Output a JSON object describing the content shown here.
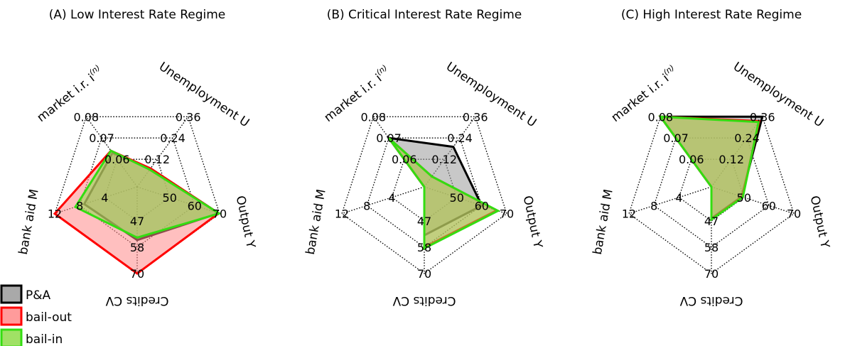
{
  "chart_data": [
    {
      "type": "radar",
      "title": "(A) Low Interest Rate Regime",
      "axes": [
        {
          "label": "market i.r. i",
          "label_sup": "(n)",
          "ticks": [
            "0.06",
            "0.07",
            "0.08"
          ],
          "ticks_rotated": false
        },
        {
          "label": "Unemployment U",
          "ticks": [
            "0.12",
            "0.24",
            "0.36"
          ],
          "ticks_rotated": false
        },
        {
          "label": "Output Y",
          "ticks": [
            "50",
            "60",
            "70"
          ],
          "ticks_rotated": false
        },
        {
          "label": "Credits CV",
          "ticks": [
            "47",
            "58",
            "70"
          ],
          "ticks_rotated": false
        },
        {
          "label": "bank aid M",
          "ticks": [
            "4",
            "8",
            "12"
          ],
          "ticks_rotated": false
        }
      ],
      "series": [
        {
          "name": "P&A",
          "color": "#000000",
          "fill": "#9a9a9a",
          "values": [
            0.063,
            0.08,
            69.6,
            55,
            7.7
          ]
        },
        {
          "name": "bail-out",
          "color": "#ff0000",
          "fill": "#ff8a8a",
          "values": [
            0.064,
            0.08,
            69.6,
            70,
            12.0
          ]
        },
        {
          "name": "bail-in",
          "color": "#33dd11",
          "fill": "#8fdc4a",
          "values": [
            0.064,
            0.075,
            69.8,
            54,
            9.0
          ]
        }
      ]
    },
    {
      "type": "radar",
      "title": "(B) Critical Interest Rate Regime",
      "axes": [
        {
          "label": "market i.r. i",
          "label_sup": "(n)",
          "ticks": [
            "0.06",
            "0.07",
            "0.08"
          ],
          "ticks_rotated": false
        },
        {
          "label": "Unemployment U",
          "ticks": [
            "0.12",
            "0.24",
            "0.36"
          ],
          "ticks_rotated": false
        },
        {
          "label": "Output Y",
          "ticks": [
            "50",
            "60",
            "70"
          ],
          "ticks_rotated": false
        },
        {
          "label": "Credits CV",
          "ticks": [
            "47",
            "58",
            "70"
          ],
          "ticks_rotated": false
        },
        {
          "label": "bank aid M",
          "ticks": [
            "4",
            "8",
            "12"
          ],
          "ticks_rotated": false
        }
      ],
      "series": [
        {
          "name": "P&A",
          "color": "#000000",
          "fill": "#9a9a9a",
          "values": [
            0.07,
            0.19,
            60,
            53,
            0
          ]
        },
        {
          "name": "bail-out",
          "color": "#ff0000",
          "fill": "#ff8a8a",
          "values": [
            0.07,
            0.045,
            66,
            58,
            0
          ]
        },
        {
          "name": "bail-in",
          "color": "#33dd11",
          "fill": "#8fdc4a",
          "values": [
            0.07,
            0.045,
            66.5,
            58.5,
            0
          ]
        }
      ]
    },
    {
      "type": "radar",
      "title": "(C) High Interest Rate Regime",
      "axes": [
        {
          "label": "market i.r. i",
          "label_sup": "(n)",
          "ticks": [
            "0.06",
            "0.07",
            "0.08"
          ],
          "ticks_rotated": false
        },
        {
          "label": "Unemployment U",
          "ticks": [
            "0.12",
            "0.24",
            "0.36"
          ],
          "ticks_rotated": false
        },
        {
          "label": "Output Y",
          "ticks": [
            "50",
            "60",
            "70"
          ],
          "ticks_rotated": false
        },
        {
          "label": "Credits CV",
          "ticks": [
            "47",
            "58",
            "70"
          ],
          "ticks_rotated": false
        },
        {
          "label": "bank aid M",
          "ticks": [
            "4",
            "8",
            "12"
          ],
          "ticks_rotated": false
        }
      ],
      "series": [
        {
          "name": "P&A",
          "color": "#000000",
          "fill": "#9a9a9a",
          "values": [
            0.08,
            0.36,
            46.5,
            43.5,
            0
          ]
        },
        {
          "name": "bail-out",
          "color": "#ff0000",
          "fill": "#ff8a8a",
          "values": [
            0.08,
            0.335,
            47.5,
            44.5,
            0
          ]
        },
        {
          "name": "bail-in",
          "color": "#33dd11",
          "fill": "#8fdc4a",
          "values": [
            0.08,
            0.33,
            48.5,
            45,
            0
          ]
        }
      ]
    }
  ],
  "legend": {
    "position": "bottom-left",
    "items": [
      {
        "label": "P&A",
        "color": "#000000",
        "fill": "#9a9a9a"
      },
      {
        "label": "bail-out",
        "color": "#ff0000",
        "fill": "#ff8a8a"
      },
      {
        "label": "bail-in",
        "color": "#33dd11",
        "fill": "#8fdc4a"
      }
    ]
  }
}
